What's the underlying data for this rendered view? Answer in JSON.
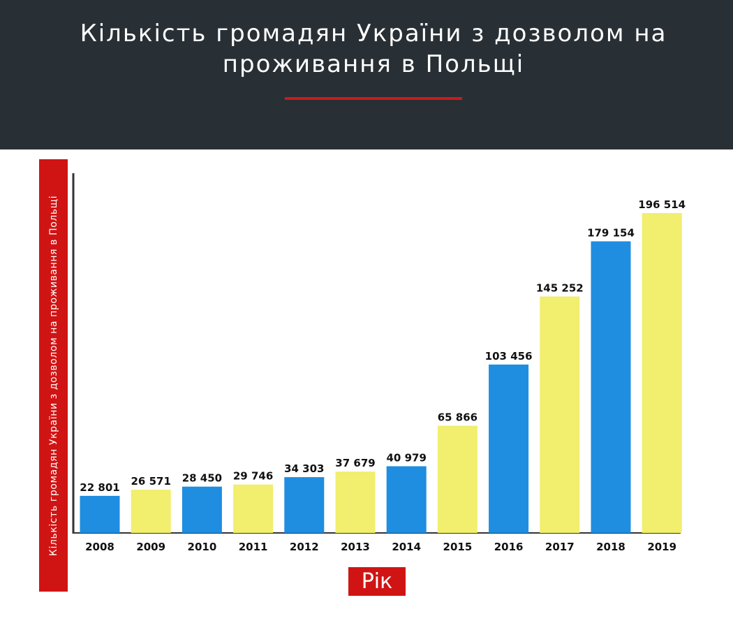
{
  "header": {
    "title": "Кількість громадян України з дозволом на проживання в Польщі"
  },
  "chart_data": {
    "type": "bar",
    "title": "Кількість громадян України з дозволом на проживання в Польщі",
    "ylabel": "Кількість громадян України з дозволом на проживання в Польщі",
    "xlabel": "Рік",
    "categories": [
      "2008",
      "2009",
      "2010",
      "2011",
      "2012",
      "2013",
      "2014",
      "2015",
      "2016",
      "2017",
      "2018",
      "2019"
    ],
    "values": [
      22801,
      26571,
      28450,
      29746,
      34303,
      37679,
      40979,
      65866,
      103456,
      145252,
      179154,
      196514
    ],
    "value_labels": [
      "22 801",
      "26 571",
      "28 450",
      "29 746",
      "34 303",
      "37 679",
      "40 979",
      "65 866",
      "103 456",
      "145 252",
      "179 154",
      "196 514"
    ],
    "bar_colors": [
      "#1f8de0",
      "#f2ee6e",
      "#1f8de0",
      "#f2ee6e",
      "#1f8de0",
      "#f2ee6e",
      "#1f8de0",
      "#f2ee6e",
      "#1f8de0",
      "#f2ee6e",
      "#1f8de0",
      "#f2ee6e"
    ],
    "ylim": [
      0,
      205000
    ],
    "grid": false,
    "legend": "none"
  },
  "colors": {
    "header_bg": "#293035",
    "accent_red": "#d01414",
    "blue": "#1f8de0",
    "yellow": "#f2ee6e",
    "axis": "#333333"
  }
}
